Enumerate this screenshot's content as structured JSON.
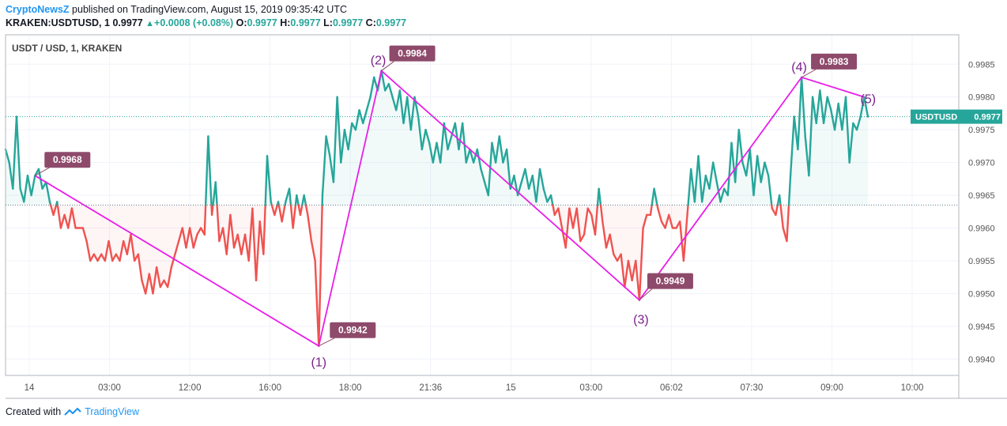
{
  "header": {
    "publisher": "CryptoNewsZ",
    "published_text": " published on TradingView.com, August 15, 2019 09:35:42 UTC",
    "symbol_line": "KRAKEN:USDTUSD, 1",
    "last": "0.9977",
    "change": "+0.0008 (+0.08%)",
    "o_label": "O:",
    "o_value": "0.9977",
    "h_label": "H:",
    "h_value": "0.9977",
    "l_label": "L:",
    "l_value": "0.9977",
    "c_label": "C:",
    "c_value": "0.9977"
  },
  "footer": {
    "created_with": "Created with",
    "brand": "TradingView"
  },
  "colors": {
    "up": "#26a69a",
    "down": "#ef5350",
    "wave": "#e91ee9",
    "label_bg": "#8e4a6b",
    "brand": "#2196f3"
  },
  "chart_data": {
    "type": "line",
    "title": "USDT / USD, 1, KRAKEN",
    "price_tag": "USDTUSD",
    "last_price": 0.9977,
    "baseline": 0.99635,
    "ylim": [
      0.99375,
      0.99895
    ],
    "y_ticks": [
      0.994,
      0.9945,
      0.995,
      0.9955,
      0.996,
      0.9965,
      0.997,
      0.9975,
      0.998,
      0.9985
    ],
    "y_tick_labels": [
      "0.9940",
      "0.9945",
      "0.9950",
      "0.9955",
      "0.9960",
      "0.9965",
      "0.9970",
      "0.9975",
      "0.9980",
      "0.9985"
    ],
    "x_tick_labels": [
      "14",
      "03:00",
      "12:00",
      "16:00",
      "18:00",
      "21:36",
      "15",
      "03:00",
      "06:02",
      "07:30",
      "09:00",
      "10:00"
    ],
    "wave_points": [
      {
        "label": "",
        "value": 0.9968,
        "tag": "0.9968"
      },
      {
        "label": "(1)",
        "value": 0.9942,
        "tag": "0.9942"
      },
      {
        "label": "(2)",
        "value": 0.9984,
        "tag": "0.9984"
      },
      {
        "label": "(3)",
        "value": 0.9949,
        "tag": "0.9949"
      },
      {
        "label": "(4)",
        "value": 0.9983,
        "tag": "0.9983"
      },
      {
        "label": "(5)",
        "value": 0.998,
        "tag": ""
      }
    ],
    "series": [
      {
        "values": [
          [
            0,
            0.9972
          ],
          [
            1,
            0.997
          ],
          [
            2,
            0.9966
          ],
          [
            3,
            0.9977
          ],
          [
            4,
            0.9966
          ],
          [
            5,
            0.9964
          ],
          [
            6,
            0.9968
          ],
          [
            7,
            0.9965
          ],
          [
            8,
            0.9968
          ],
          [
            9,
            0.9969
          ],
          [
            10,
            0.9966
          ],
          [
            11,
            0.9967
          ],
          [
            12,
            0.9964
          ],
          [
            13,
            0.9962
          ],
          [
            14,
            0.9964
          ],
          [
            15,
            0.996
          ],
          [
            16,
            0.9962
          ],
          [
            17,
            0.996
          ],
          [
            18,
            0.9963
          ],
          [
            19,
            0.996
          ],
          [
            20,
            0.996
          ],
          [
            21,
            0.996
          ],
          [
            22,
            0.9958
          ],
          [
            23,
            0.9955
          ],
          [
            24,
            0.9956
          ],
          [
            25,
            0.9955
          ],
          [
            26,
            0.9956
          ],
          [
            27,
            0.9955
          ],
          [
            28,
            0.9958
          ],
          [
            29,
            0.9955
          ],
          [
            30,
            0.9956
          ],
          [
            31,
            0.9955
          ],
          [
            32,
            0.9958
          ],
          [
            33,
            0.9956
          ],
          [
            34,
            0.9959
          ],
          [
            35,
            0.9955
          ],
          [
            36,
            0.9956
          ],
          [
            37,
            0.9952
          ],
          [
            38,
            0.995
          ],
          [
            39,
            0.9953
          ],
          [
            40,
            0.995
          ],
          [
            41,
            0.9954
          ],
          [
            42,
            0.9951
          ],
          [
            43,
            0.9952
          ],
          [
            44,
            0.9951
          ],
          [
            45,
            0.9954
          ],
          [
            46,
            0.9956
          ],
          [
            47,
            0.9958
          ],
          [
            48,
            0.996
          ],
          [
            49,
            0.9957
          ],
          [
            50,
            0.996
          ],
          [
            51,
            0.9957
          ],
          [
            52,
            0.9959
          ],
          [
            53,
            0.996
          ],
          [
            54,
            0.9959
          ],
          [
            55,
            0.9974
          ],
          [
            56,
            0.9962
          ],
          [
            57,
            0.9967
          ],
          [
            58,
            0.9958
          ],
          [
            59,
            0.996
          ],
          [
            60,
            0.9956
          ],
          [
            61,
            0.9962
          ],
          [
            62,
            0.9957
          ],
          [
            63,
            0.9959
          ],
          [
            64,
            0.9956
          ],
          [
            65,
            0.9959
          ],
          [
            66,
            0.9955
          ],
          [
            67,
            0.9963
          ],
          [
            68,
            0.9952
          ],
          [
            69,
            0.9961
          ],
          [
            70,
            0.9956
          ],
          [
            71,
            0.9971
          ],
          [
            72,
            0.9964
          ],
          [
            73,
            0.9962
          ],
          [
            74,
            0.9964
          ],
          [
            75,
            0.9961
          ],
          [
            76,
            0.9964
          ],
          [
            77,
            0.9966
          ],
          [
            78,
            0.996
          ],
          [
            79,
            0.9965
          ],
          [
            80,
            0.9962
          ],
          [
            81,
            0.9965
          ],
          [
            82,
            0.9962
          ],
          [
            83,
            0.9958
          ],
          [
            84,
            0.9955
          ],
          [
            85,
            0.9942
          ],
          [
            86,
            0.9965
          ],
          [
            87,
            0.9974
          ],
          [
            88,
            0.9971
          ],
          [
            89,
            0.9967
          ],
          [
            90,
            0.998
          ],
          [
            91,
            0.997
          ],
          [
            92,
            0.9975
          ],
          [
            93,
            0.9972
          ],
          [
            94,
            0.9976
          ],
          [
            95,
            0.9975
          ],
          [
            96,
            0.9978
          ],
          [
            97,
            0.9976
          ],
          [
            98,
            0.9978
          ],
          [
            99,
            0.998
          ],
          [
            100,
            0.9983
          ],
          [
            101,
            0.9981
          ],
          [
            102,
            0.9984
          ],
          [
            103,
            0.9981
          ],
          [
            104,
            0.9982
          ],
          [
            105,
            0.998
          ],
          [
            106,
            0.9978
          ],
          [
            107,
            0.9981
          ],
          [
            108,
            0.9976
          ],
          [
            109,
            0.998
          ],
          [
            110,
            0.9975
          ],
          [
            111,
            0.998
          ],
          [
            112,
            0.9977
          ],
          [
            113,
            0.9972
          ],
          [
            114,
            0.9975
          ],
          [
            115,
            0.9973
          ],
          [
            116,
            0.997
          ],
          [
            117,
            0.9973
          ],
          [
            118,
            0.997
          ],
          [
            119,
            0.9976
          ],
          [
            120,
            0.9972
          ],
          [
            121,
            0.9974
          ],
          [
            122,
            0.9976
          ],
          [
            123,
            0.9972
          ],
          [
            124,
            0.9976
          ],
          [
            125,
            0.997
          ],
          [
            126,
            0.9972
          ],
          [
            127,
            0.997
          ],
          [
            128,
            0.9972
          ],
          [
            129,
            0.9969
          ],
          [
            130,
            0.9967
          ],
          [
            131,
            0.9965
          ],
          [
            132,
            0.9973
          ],
          [
            133,
            0.997
          ],
          [
            134,
            0.9974
          ],
          [
            135,
            0.997
          ],
          [
            136,
            0.9972
          ],
          [
            137,
            0.9966
          ],
          [
            138,
            0.9968
          ],
          [
            139,
            0.9965
          ],
          [
            140,
            0.9967
          ],
          [
            141,
            0.9969
          ],
          [
            142,
            0.9966
          ],
          [
            143,
            0.9968
          ],
          [
            144,
            0.9964
          ],
          [
            145,
            0.9969
          ],
          [
            146,
            0.9966
          ],
          [
            147,
            0.9964
          ],
          [
            148,
            0.9965
          ],
          [
            149,
            0.9962
          ],
          [
            150,
            0.9963
          ],
          [
            151,
            0.996
          ],
          [
            152,
            0.9957
          ],
          [
            153,
            0.9963
          ],
          [
            154,
            0.996
          ],
          [
            155,
            0.9963
          ],
          [
            156,
            0.9958
          ],
          [
            157,
            0.9959
          ],
          [
            158,
            0.9963
          ],
          [
            159,
            0.9962
          ],
          [
            160,
            0.9959
          ],
          [
            161,
            0.9966
          ],
          [
            162,
            0.9961
          ],
          [
            163,
            0.9957
          ],
          [
            164,
            0.9959
          ],
          [
            165,
            0.9956
          ],
          [
            166,
            0.9955
          ],
          [
            167,
            0.9956
          ],
          [
            168,
            0.9951
          ],
          [
            169,
            0.9955
          ],
          [
            170,
            0.9952
          ],
          [
            171,
            0.9955
          ],
          [
            172,
            0.9949
          ],
          [
            173,
            0.996
          ],
          [
            174,
            0.9962
          ],
          [
            175,
            0.9962
          ],
          [
            176,
            0.9966
          ],
          [
            177,
            0.9963
          ],
          [
            178,
            0.9961
          ],
          [
            179,
            0.996
          ],
          [
            180,
            0.9962
          ],
          [
            181,
            0.996
          ],
          [
            182,
            0.996
          ],
          [
            183,
            0.9961
          ],
          [
            184,
            0.9955
          ],
          [
            185,
            0.9962
          ],
          [
            186,
            0.9969
          ],
          [
            187,
            0.9964
          ],
          [
            188,
            0.9971
          ],
          [
            189,
            0.9964
          ],
          [
            190,
            0.9968
          ],
          [
            191,
            0.9966
          ],
          [
            192,
            0.997
          ],
          [
            193,
            0.9967
          ],
          [
            194,
            0.9964
          ],
          [
            195,
            0.9966
          ],
          [
            196,
            0.9965
          ],
          [
            197,
            0.9973
          ],
          [
            198,
            0.9967
          ],
          [
            199,
            0.9975
          ],
          [
            200,
            0.997
          ],
          [
            201,
            0.9968
          ],
          [
            202,
            0.9972
          ],
          [
            203,
            0.9965
          ],
          [
            204,
            0.9971
          ],
          [
            205,
            0.9967
          ],
          [
            206,
            0.997
          ],
          [
            207,
            0.9968
          ],
          [
            208,
            0.9963
          ],
          [
            209,
            0.9962
          ],
          [
            210,
            0.9965
          ],
          [
            211,
            0.996
          ],
          [
            212,
            0.9958
          ],
          [
            213,
            0.9968
          ],
          [
            214,
            0.9977
          ],
          [
            215,
            0.9972
          ],
          [
            216,
            0.9983
          ],
          [
            217,
            0.9974
          ],
          [
            218,
            0.9968
          ],
          [
            219,
            0.998
          ],
          [
            220,
            0.9976
          ],
          [
            221,
            0.9981
          ],
          [
            222,
            0.9976
          ],
          [
            223,
            0.998
          ],
          [
            224,
            0.9978
          ],
          [
            225,
            0.9975
          ],
          [
            226,
            0.9979
          ],
          [
            227,
            0.9975
          ],
          [
            228,
            0.998
          ],
          [
            229,
            0.997
          ],
          [
            230,
            0.9976
          ],
          [
            231,
            0.9975
          ],
          [
            232,
            0.9977
          ],
          [
            233,
            0.998
          ],
          [
            234,
            0.9977
          ]
        ]
      }
    ]
  }
}
